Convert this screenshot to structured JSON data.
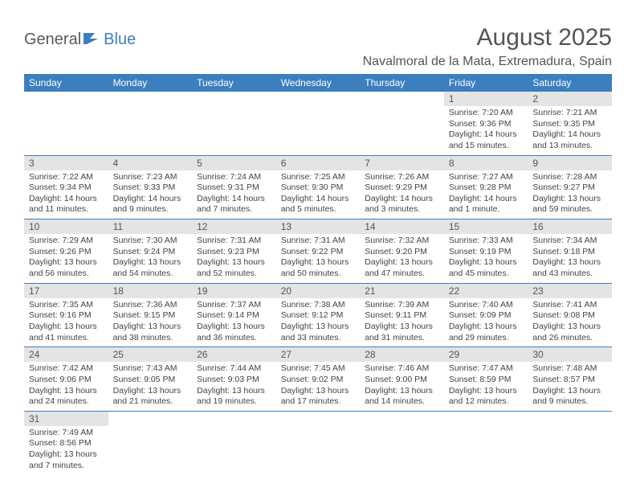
{
  "logo": {
    "text1": "General",
    "text2": "Blue"
  },
  "title": "August 2025",
  "location": "Navalmoral de la Mata, Extremadura, Spain",
  "colors": {
    "header_bg": "#3b7fbf",
    "header_fg": "#ffffff",
    "daynum_bg": "#e4e4e4",
    "row_divider": "#3b7fbf",
    "text": "#444444"
  },
  "day_labels": [
    "Sunday",
    "Monday",
    "Tuesday",
    "Wednesday",
    "Thursday",
    "Friday",
    "Saturday"
  ],
  "weeks": [
    [
      null,
      null,
      null,
      null,
      null,
      {
        "n": "1",
        "sr": "7:20 AM",
        "ss": "9:36 PM",
        "dl": "14 hours and 15 minutes."
      },
      {
        "n": "2",
        "sr": "7:21 AM",
        "ss": "9:35 PM",
        "dl": "14 hours and 13 minutes."
      }
    ],
    [
      {
        "n": "3",
        "sr": "7:22 AM",
        "ss": "9:34 PM",
        "dl": "14 hours and 11 minutes."
      },
      {
        "n": "4",
        "sr": "7:23 AM",
        "ss": "9:33 PM",
        "dl": "14 hours and 9 minutes."
      },
      {
        "n": "5",
        "sr": "7:24 AM",
        "ss": "9:31 PM",
        "dl": "14 hours and 7 minutes."
      },
      {
        "n": "6",
        "sr": "7:25 AM",
        "ss": "9:30 PM",
        "dl": "14 hours and 5 minutes."
      },
      {
        "n": "7",
        "sr": "7:26 AM",
        "ss": "9:29 PM",
        "dl": "14 hours and 3 minutes."
      },
      {
        "n": "8",
        "sr": "7:27 AM",
        "ss": "9:28 PM",
        "dl": "14 hours and 1 minute."
      },
      {
        "n": "9",
        "sr": "7:28 AM",
        "ss": "9:27 PM",
        "dl": "13 hours and 59 minutes."
      }
    ],
    [
      {
        "n": "10",
        "sr": "7:29 AM",
        "ss": "9:26 PM",
        "dl": "13 hours and 56 minutes."
      },
      {
        "n": "11",
        "sr": "7:30 AM",
        "ss": "9:24 PM",
        "dl": "13 hours and 54 minutes."
      },
      {
        "n": "12",
        "sr": "7:31 AM",
        "ss": "9:23 PM",
        "dl": "13 hours and 52 minutes."
      },
      {
        "n": "13",
        "sr": "7:31 AM",
        "ss": "9:22 PM",
        "dl": "13 hours and 50 minutes."
      },
      {
        "n": "14",
        "sr": "7:32 AM",
        "ss": "9:20 PM",
        "dl": "13 hours and 47 minutes."
      },
      {
        "n": "15",
        "sr": "7:33 AM",
        "ss": "9:19 PM",
        "dl": "13 hours and 45 minutes."
      },
      {
        "n": "16",
        "sr": "7:34 AM",
        "ss": "9:18 PM",
        "dl": "13 hours and 43 minutes."
      }
    ],
    [
      {
        "n": "17",
        "sr": "7:35 AM",
        "ss": "9:16 PM",
        "dl": "13 hours and 41 minutes."
      },
      {
        "n": "18",
        "sr": "7:36 AM",
        "ss": "9:15 PM",
        "dl": "13 hours and 38 minutes."
      },
      {
        "n": "19",
        "sr": "7:37 AM",
        "ss": "9:14 PM",
        "dl": "13 hours and 36 minutes."
      },
      {
        "n": "20",
        "sr": "7:38 AM",
        "ss": "9:12 PM",
        "dl": "13 hours and 33 minutes."
      },
      {
        "n": "21",
        "sr": "7:39 AM",
        "ss": "9:11 PM",
        "dl": "13 hours and 31 minutes."
      },
      {
        "n": "22",
        "sr": "7:40 AM",
        "ss": "9:09 PM",
        "dl": "13 hours and 29 minutes."
      },
      {
        "n": "23",
        "sr": "7:41 AM",
        "ss": "9:08 PM",
        "dl": "13 hours and 26 minutes."
      }
    ],
    [
      {
        "n": "24",
        "sr": "7:42 AM",
        "ss": "9:06 PM",
        "dl": "13 hours and 24 minutes."
      },
      {
        "n": "25",
        "sr": "7:43 AM",
        "ss": "9:05 PM",
        "dl": "13 hours and 21 minutes."
      },
      {
        "n": "26",
        "sr": "7:44 AM",
        "ss": "9:03 PM",
        "dl": "13 hours and 19 minutes."
      },
      {
        "n": "27",
        "sr": "7:45 AM",
        "ss": "9:02 PM",
        "dl": "13 hours and 17 minutes."
      },
      {
        "n": "28",
        "sr": "7:46 AM",
        "ss": "9:00 PM",
        "dl": "13 hours and 14 minutes."
      },
      {
        "n": "29",
        "sr": "7:47 AM",
        "ss": "8:59 PM",
        "dl": "13 hours and 12 minutes."
      },
      {
        "n": "30",
        "sr": "7:48 AM",
        "ss": "8:57 PM",
        "dl": "13 hours and 9 minutes."
      }
    ],
    [
      {
        "n": "31",
        "sr": "7:49 AM",
        "ss": "8:56 PM",
        "dl": "13 hours and 7 minutes."
      },
      null,
      null,
      null,
      null,
      null,
      null
    ]
  ],
  "labels": {
    "sunrise": "Sunrise: ",
    "sunset": "Sunset: ",
    "daylight": "Daylight: "
  }
}
